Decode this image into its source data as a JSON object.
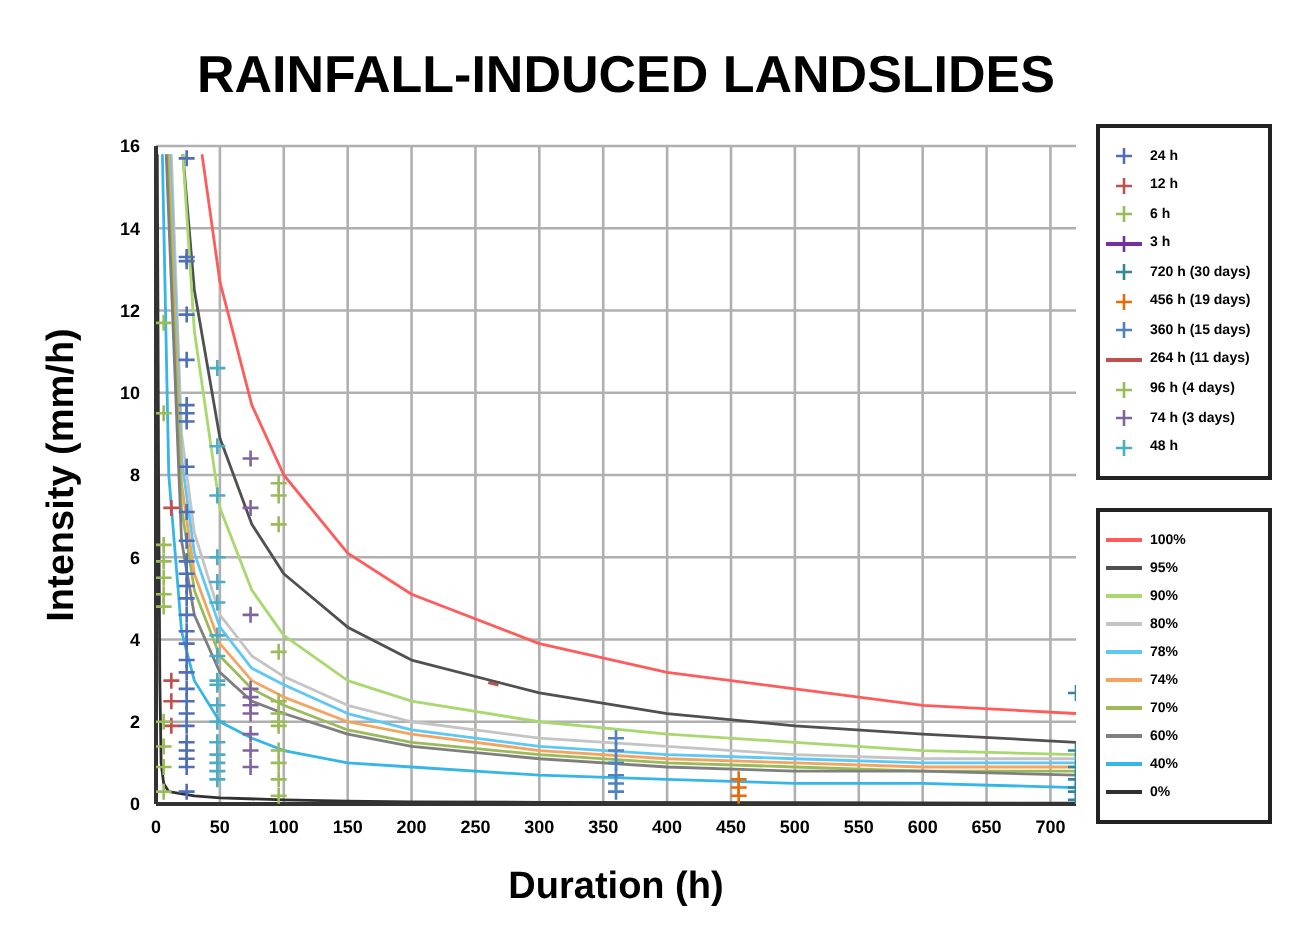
{
  "chart_data": {
    "type": "scatter",
    "title": "RAINFALL-INDUCED LANDSLIDES",
    "xlabel": "Duration (h)",
    "ylabel": "Intensity (mm/h)",
    "xlim": [
      0,
      720
    ],
    "xticks": [
      0,
      50,
      100,
      150,
      200,
      250,
      300,
      350,
      400,
      450,
      500,
      550,
      600,
      650,
      700
    ],
    "ylim": [
      0,
      16
    ],
    "yticks": [
      0,
      2,
      4,
      6,
      8,
      10,
      12,
      14,
      16
    ],
    "grid": true,
    "legend": "right",
    "series": [
      {
        "name": "24 h",
        "marker": "cross",
        "color": "#4f6fb8",
        "x": [
          24,
          24,
          24,
          24,
          24,
          24,
          24,
          24,
          24,
          24,
          24,
          24,
          24,
          24,
          24,
          24,
          24,
          24,
          24,
          24,
          24,
          24,
          24,
          24,
          24,
          24,
          24,
          24,
          24
        ],
        "values": [
          15.7,
          13.3,
          13.2,
          11.9,
          10.8,
          9.7,
          9.5,
          9.3,
          8.2,
          7.1,
          6.4,
          5.9,
          5.6,
          5.3,
          5.0,
          4.6,
          4.2,
          3.9,
          3.5,
          3.2,
          2.8,
          2.5,
          2.2,
          1.9,
          1.5,
          1.3,
          1.1,
          0.9,
          0.3
        ]
      },
      {
        "name": "12 h",
        "marker": "cross",
        "color": "#c0504d",
        "x": [
          12,
          12,
          12,
          12
        ],
        "values": [
          7.2,
          3.0,
          2.5,
          1.9
        ]
      },
      {
        "name": "6 h",
        "marker": "cross",
        "color": "#9bbb59",
        "x": [
          6,
          6,
          6,
          6,
          6,
          6,
          6,
          6,
          6,
          6,
          6
        ],
        "values": [
          11.7,
          9.5,
          6.3,
          5.9,
          5.5,
          5.1,
          4.8,
          2.0,
          1.4,
          0.9,
          0.3
        ]
      },
      {
        "name": "3 h",
        "type": "line",
        "marker": "cross",
        "color": "#7030a0"
      },
      {
        "name": "720 h (30 days)",
        "marker": "cross",
        "color": "#31859c",
        "x": [
          720,
          720,
          720,
          720,
          720,
          720,
          720
        ],
        "values": [
          2.7,
          1.3,
          0.9,
          0.6,
          0.4,
          0.3,
          0.1
        ]
      },
      {
        "name": "456 h (19 days)",
        "marker": "cross",
        "color": "#e46c0a",
        "x": [
          456,
          456,
          456
        ],
        "values": [
          0.6,
          0.4,
          0.2
        ]
      },
      {
        "name": "360 h (15 days)",
        "marker": "cross",
        "color": "#4f81bd",
        "x": [
          360,
          360,
          360,
          360,
          360,
          360
        ],
        "values": [
          1.6,
          1.3,
          1.0,
          0.7,
          0.5,
          0.3
        ]
      },
      {
        "name": "264 h (11 days)",
        "type": "line",
        "color": "#c0504d",
        "x": [
          260,
          268
        ],
        "values": [
          2.95,
          2.89
        ]
      },
      {
        "name": "96 h (4 days)",
        "marker": "cross",
        "color": "#9bbb59",
        "x": [
          96,
          96,
          96,
          96,
          96,
          96,
          96,
          96,
          96,
          96,
          96,
          96
        ],
        "values": [
          7.8,
          7.5,
          6.8,
          3.7,
          2.5,
          2.2,
          2.0,
          1.9,
          1.3,
          1.0,
          0.6,
          0.2
        ]
      },
      {
        "name": "74 h (3 days)",
        "marker": "cross",
        "color": "#8064a2",
        "x": [
          74,
          74,
          74,
          74,
          74,
          74,
          74,
          74,
          74,
          74
        ],
        "values": [
          8.4,
          7.2,
          4.6,
          2.8,
          2.6,
          2.4,
          2.2,
          1.7,
          1.3,
          0.9
        ]
      },
      {
        "name": "48 h",
        "marker": "cross",
        "color": "#4bacc6",
        "x": [
          48,
          48,
          48,
          48,
          48,
          48,
          48,
          48,
          48,
          48,
          48,
          48,
          48,
          48,
          48,
          48,
          48
        ],
        "values": [
          10.6,
          8.7,
          7.5,
          6.0,
          5.4,
          4.9,
          4.1,
          3.6,
          3.0,
          2.9,
          2.4,
          2.0,
          1.5,
          1.2,
          1.0,
          0.8,
          0.6
        ]
      },
      {
        "name": "100%",
        "type": "line",
        "color": "#ff5b5b",
        "x": [
          36,
          50,
          75,
          100,
          150,
          200,
          300,
          400,
          500,
          600,
          720
        ],
        "values": [
          15.8,
          12.7,
          9.7,
          8.0,
          6.1,
          5.1,
          3.9,
          3.2,
          2.8,
          2.4,
          2.2
        ]
      },
      {
        "name": "95%",
        "type": "line",
        "color": "#505050",
        "x": [
          21,
          30,
          50,
          75,
          100,
          150,
          200,
          300,
          400,
          500,
          600,
          720
        ],
        "values": [
          15.8,
          12.5,
          8.9,
          6.8,
          5.6,
          4.3,
          3.5,
          2.7,
          2.2,
          1.9,
          1.7,
          1.5
        ]
      },
      {
        "name": "90%",
        "type": "line",
        "color": "#a8d86e",
        "x": [
          21,
          30,
          50,
          75,
          100,
          150,
          200,
          300,
          400,
          500,
          600,
          720
        ],
        "values": [
          15.8,
          11.5,
          7.2,
          5.2,
          4.1,
          3.0,
          2.5,
          2.0,
          1.7,
          1.5,
          1.3,
          1.2
        ]
      },
      {
        "name": "80%",
        "type": "line",
        "color": "#c4c4c4",
        "x": [
          12,
          20,
          30,
          50,
          75,
          100,
          150,
          200,
          300,
          400,
          500,
          600,
          720
        ],
        "values": [
          15.8,
          9.0,
          6.6,
          4.6,
          3.6,
          3.1,
          2.4,
          2.0,
          1.6,
          1.4,
          1.2,
          1.1,
          1.1
        ]
      },
      {
        "name": "78%",
        "type": "line",
        "color": "#5cc8f5",
        "x": [
          11,
          20,
          30,
          50,
          75,
          100,
          150,
          200,
          300,
          400,
          500,
          600,
          720
        ],
        "values": [
          15.8,
          8.4,
          6.1,
          4.3,
          3.3,
          2.9,
          2.2,
          1.8,
          1.4,
          1.2,
          1.1,
          1.0,
          1.0
        ]
      },
      {
        "name": "74%",
        "type": "line",
        "color": "#f5a460",
        "x": [
          10,
          20,
          30,
          50,
          75,
          100,
          150,
          200,
          300,
          400,
          500,
          600,
          720
        ],
        "values": [
          15.8,
          7.8,
          5.6,
          3.9,
          3.0,
          2.6,
          2.0,
          1.7,
          1.3,
          1.1,
          1.0,
          0.9,
          0.9
        ]
      },
      {
        "name": "70%",
        "type": "line",
        "color": "#9bbb59",
        "x": [
          9,
          20,
          30,
          50,
          75,
          100,
          150,
          200,
          300,
          400,
          500,
          600,
          720
        ],
        "values": [
          15.8,
          7.2,
          5.2,
          3.6,
          2.8,
          2.4,
          1.8,
          1.5,
          1.2,
          1.0,
          0.9,
          0.8,
          0.8
        ]
      },
      {
        "name": "60%",
        "type": "line",
        "color": "#7f7f7f",
        "x": [
          8,
          20,
          30,
          50,
          75,
          100,
          150,
          200,
          300,
          400,
          500,
          600,
          720
        ],
        "values": [
          15.8,
          6.4,
          4.6,
          3.2,
          2.5,
          2.2,
          1.7,
          1.4,
          1.1,
          0.9,
          0.8,
          0.8,
          0.7
        ]
      },
      {
        "name": "40%",
        "type": "line",
        "color": "#35b5e8",
        "x": [
          5,
          10,
          20,
          30,
          50,
          75,
          100,
          150,
          200,
          300,
          400,
          500,
          600,
          720
        ],
        "values": [
          15.8,
          8.0,
          4.2,
          3.0,
          2.0,
          1.6,
          1.3,
          1.0,
          0.9,
          0.7,
          0.6,
          0.5,
          0.5,
          0.4
        ]
      },
      {
        "name": "0%",
        "type": "line",
        "color": "#303030",
        "x": [
          1,
          2,
          3,
          4,
          6,
          10,
          30,
          50,
          100,
          150,
          200,
          300,
          500,
          720
        ],
        "values": [
          15.8,
          8.0,
          3.0,
          1.0,
          0.5,
          0.3,
          0.2,
          0.15,
          0.1,
          0.07,
          0.05,
          0.04,
          0.03,
          0.02
        ]
      }
    ]
  }
}
